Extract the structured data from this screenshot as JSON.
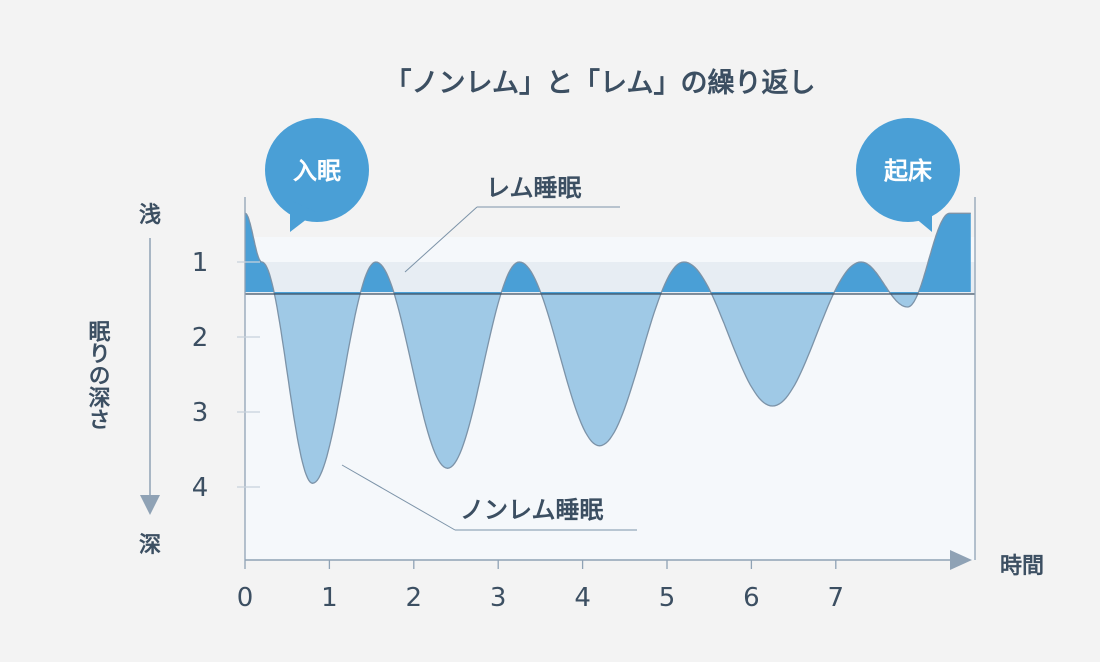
{
  "chart_data": {
    "type": "area",
    "title": "「ノンレム」と「レム」の繰り返し",
    "xlabel": "時間",
    "ylabel": "眠りの深さ",
    "y_top_label": "浅",
    "y_bottom_label": "深",
    "x_ticks": [
      "0",
      "1",
      "2",
      "3",
      "4",
      "5",
      "6",
      "7"
    ],
    "y_ticks": [
      "1",
      "2",
      "3",
      "4"
    ],
    "xlim": [
      0,
      8.6
    ],
    "ylim": [
      0.0,
      5.0
    ],
    "y_inverted": true,
    "rem_threshold": 1.4,
    "x": [
      0,
      0.2,
      0.8,
      1.55,
      2.4,
      3.25,
      4.2,
      5.2,
      6.25,
      7.3,
      7.85,
      8.35,
      8.6
    ],
    "y": [
      0.35,
      1.0,
      3.95,
      1.0,
      3.75,
      1.0,
      3.45,
      1.0,
      2.92,
      1.0,
      1.6,
      0.35,
      0.35
    ],
    "annotations": {
      "rem": "レム睡眠",
      "nonrem": "ノンレム睡眠"
    },
    "callouts": {
      "sleep_onset": "入眠",
      "wake_up": "起床"
    },
    "colors": {
      "nonrem_fill": "#9fc9e6",
      "rem_fill": "#4a9fd6",
      "band": "#e7edf3",
      "plot_bg": "#f5f8fb",
      "bubble": "#4a9fd6",
      "axis": "#8fa2b5"
    }
  }
}
